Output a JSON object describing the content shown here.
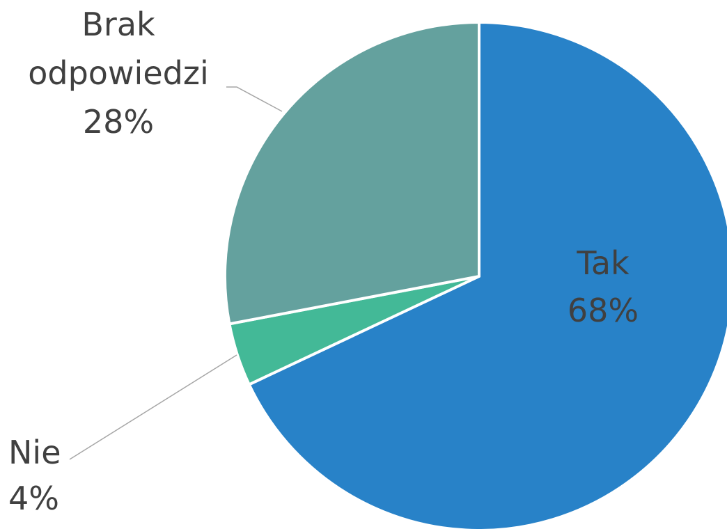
{
  "chart_data": {
    "type": "pie",
    "categories": [
      "Tak",
      "Nie",
      "Brak odpowiedzi"
    ],
    "values": [
      68,
      4,
      28
    ],
    "value_labels": [
      "68%",
      "4%",
      "28%"
    ],
    "colors": [
      "#2882c8",
      "#43b997",
      "#64a19e"
    ]
  }
}
